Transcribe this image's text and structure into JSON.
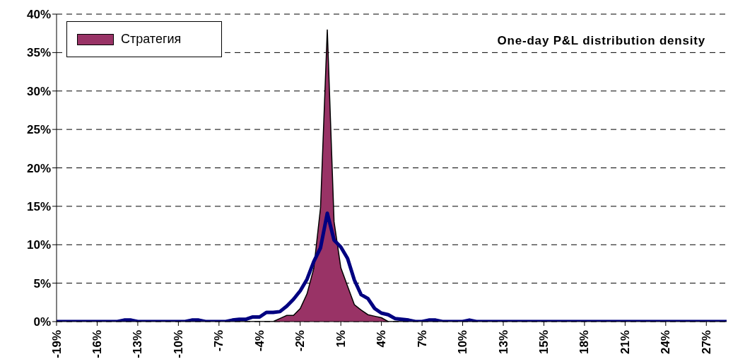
{
  "chart_data": {
    "type": "area",
    "title": "One-day P&L distribution density",
    "categories": [
      "-19%",
      null,
      null,
      null,
      null,
      null,
      "-16%",
      null,
      null,
      null,
      null,
      null,
      "-13%",
      null,
      null,
      null,
      null,
      null,
      "-10%",
      null,
      null,
      null,
      null,
      null,
      "-7%",
      null,
      null,
      null,
      null,
      null,
      "-4%",
      null,
      null,
      null,
      null,
      null,
      "-2%",
      null,
      null,
      null,
      null,
      null,
      "1%",
      null,
      null,
      null,
      null,
      null,
      "4%",
      null,
      null,
      null,
      null,
      null,
      "7%",
      null,
      null,
      null,
      null,
      null,
      "10%",
      null,
      null,
      null,
      null,
      null,
      "13%",
      null,
      null,
      null,
      null,
      null,
      "15%",
      null,
      null,
      null,
      null,
      null,
      "18%",
      null,
      null,
      null,
      null,
      null,
      "21%",
      null,
      null,
      null,
      null,
      null,
      "24%",
      null,
      null,
      null,
      null,
      null,
      "27%",
      null,
      null,
      null
    ],
    "series": [
      {
        "name": "Стратегия",
        "color": "#993366",
        "values": [
          0,
          0,
          0,
          0,
          0,
          0,
          0,
          0,
          0,
          0,
          0,
          0,
          0,
          0,
          0,
          0,
          0,
          0,
          0,
          0,
          0,
          0,
          0,
          0,
          0,
          0,
          0,
          0,
          0,
          0,
          0,
          0,
          0,
          0.4,
          0.8,
          0.8,
          1.7,
          3.6,
          6.9,
          14.8,
          38,
          13,
          7,
          4.6,
          2.2,
          1.5,
          0.9,
          0.7,
          0.5,
          0,
          0,
          0,
          0,
          0,
          0,
          0,
          0,
          0,
          0,
          0,
          0,
          0,
          0,
          0,
          0,
          0,
          0,
          0,
          0,
          0,
          0,
          0,
          0,
          0,
          0,
          0,
          0,
          0,
          0,
          0,
          0,
          0,
          0,
          0,
          0,
          0,
          0,
          0,
          0,
          0,
          0,
          0,
          0,
          0,
          0,
          0,
          0,
          0,
          0,
          0
        ]
      },
      {
        "type": "line",
        "color": "#000080",
        "values": [
          0,
          0,
          0,
          0,
          0,
          0,
          0,
          0,
          0,
          0,
          0.2,
          0.2,
          0,
          0,
          0,
          0,
          0,
          0,
          0,
          0,
          0.2,
          0.2,
          0,
          0,
          0,
          0,
          0.2,
          0.3,
          0.3,
          0.6,
          0.6,
          1.2,
          1.2,
          1.3,
          2.0,
          2.9,
          4.0,
          5.5,
          7.8,
          9.6,
          14.1,
          10.6,
          9.7,
          8.2,
          5.4,
          3.5,
          3.0,
          1.7,
          1.1,
          0.9,
          0.4,
          0.3,
          0.2,
          0,
          0,
          0.2,
          0.2,
          0,
          0,
          0,
          0,
          0.2,
          0,
          0,
          0,
          0,
          0,
          0,
          0,
          0,
          0,
          0,
          0,
          0,
          0,
          0,
          0,
          0,
          0,
          0,
          0,
          0,
          0,
          0,
          0,
          0,
          0,
          0,
          0,
          0,
          0,
          0,
          0,
          0,
          0,
          0,
          0,
          0,
          0,
          0
        ]
      }
    ],
    "ylim": [
      0,
      40
    ],
    "yticks": [
      {
        "value": 0,
        "label": "0%"
      },
      {
        "value": 5,
        "label": "5%"
      },
      {
        "value": 10,
        "label": "10%"
      },
      {
        "value": 15,
        "label": "15%"
      },
      {
        "value": 20,
        "label": "20%"
      },
      {
        "value": 25,
        "label": "25%"
      },
      {
        "value": 30,
        "label": "30%"
      },
      {
        "value": 35,
        "label": "35%"
      },
      {
        "value": 40,
        "label": "40%"
      }
    ],
    "grid": "y",
    "legend": "top left",
    "marker": "none",
    "line_style": "solid"
  }
}
